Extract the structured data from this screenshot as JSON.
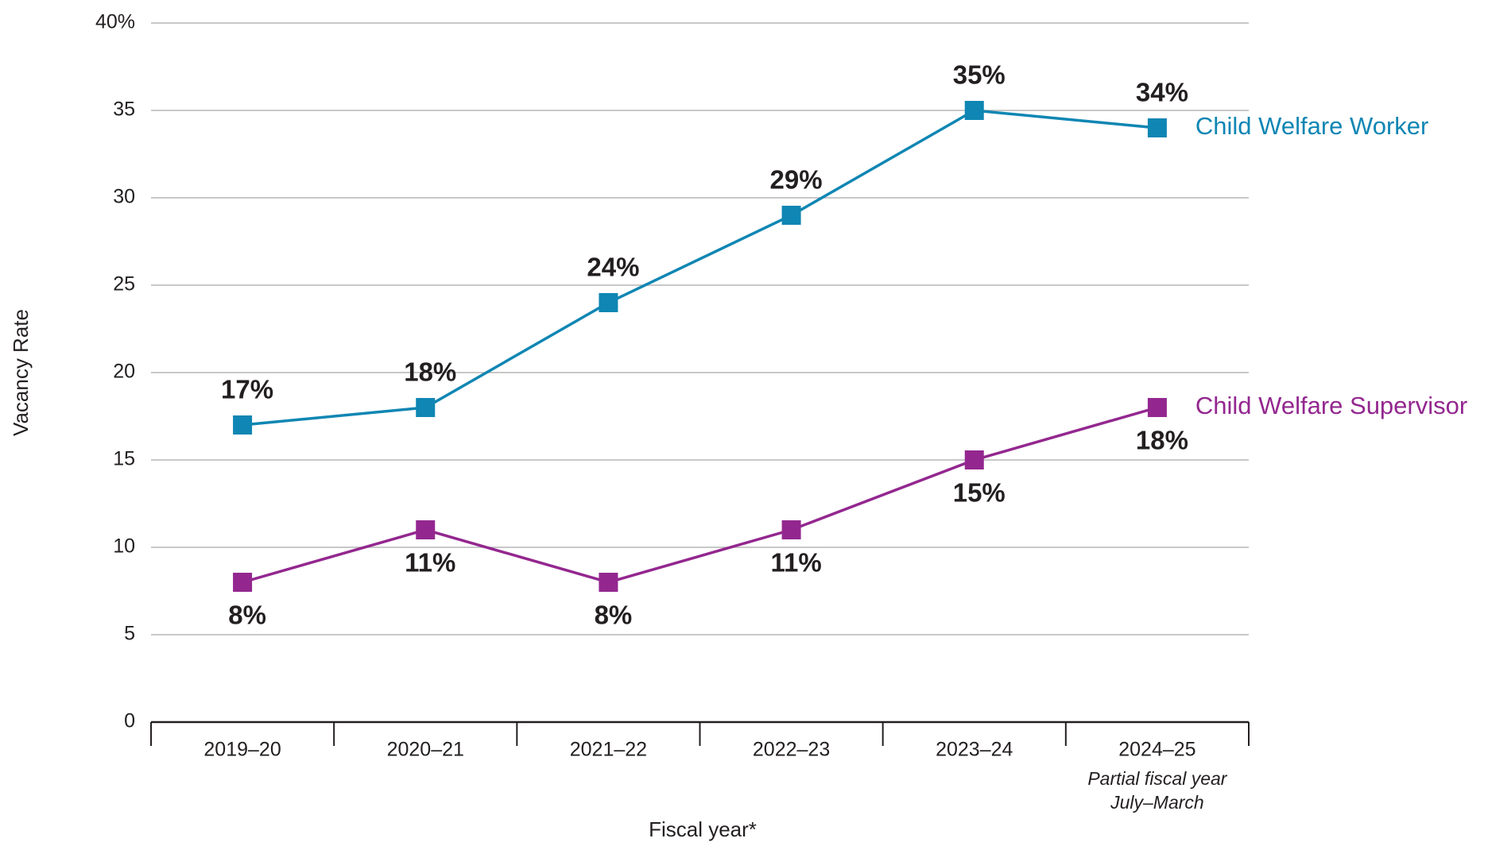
{
  "chart_data": {
    "type": "line",
    "y_label": "Vacancy Rate",
    "x_label": "Fiscal year*",
    "categories": [
      "2019–20",
      "2020–21",
      "2021–22",
      "2022–23",
      "2023–24",
      "2024–25"
    ],
    "category_note": [
      "Partial fiscal year",
      "July–March"
    ],
    "series": [
      {
        "name": "Child Welfare Worker",
        "color": "#0f86b3",
        "values": [
          17,
          18,
          24,
          29,
          35,
          34
        ],
        "value_labels": [
          "17%",
          "18%",
          "24%",
          "29%",
          "35%",
          "34%"
        ],
        "label_position": "above"
      },
      {
        "name": "Child Welfare Supervisor",
        "color": "#93278f",
        "values": [
          8,
          11,
          8,
          11,
          15,
          18
        ],
        "value_labels": [
          "8%",
          "11%",
          "8%",
          "11%",
          "15%",
          "18%"
        ],
        "label_position": "below"
      }
    ],
    "ylim": [
      0,
      40
    ],
    "yticks": [
      0,
      5,
      10,
      15,
      20,
      25,
      30,
      35,
      {
        "value": 40,
        "label": "40%"
      }
    ],
    "grid": true,
    "legend": "line-end"
  }
}
